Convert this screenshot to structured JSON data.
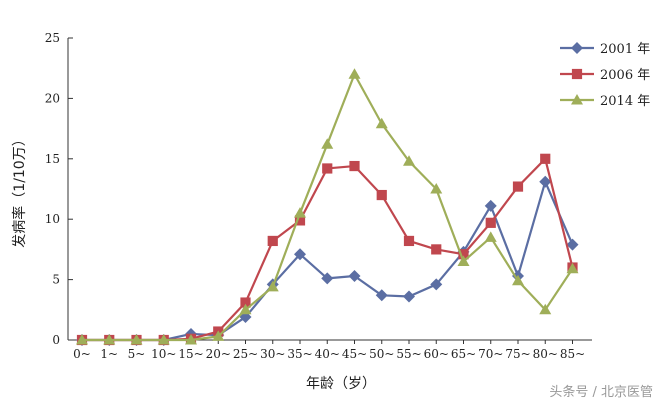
{
  "chart_data": {
    "type": "line",
    "xlabel": "年龄（岁）",
    "ylabel": "发病率（1/10万）",
    "categories": [
      "0~",
      "1~",
      "5~",
      "10~",
      "15~",
      "20~",
      "25~",
      "30~",
      "35~",
      "40~",
      "45~",
      "50~",
      "55~",
      "60~",
      "65~",
      "70~",
      "75~",
      "80~",
      "85~"
    ],
    "ylim": [
      0,
      25
    ],
    "yticks": [
      0,
      5,
      10,
      15,
      20,
      25
    ],
    "grid": false,
    "legend_position": "top-right",
    "series": [
      {
        "name": "2001 年",
        "color": "#5b6ea3",
        "marker": "diamond",
        "values": [
          0,
          0,
          0,
          0,
          0.5,
          0.4,
          1.9,
          4.6,
          7.1,
          5.1,
          5.3,
          3.7,
          3.6,
          4.6,
          7.3,
          11.1,
          5.3,
          13.1,
          7.9
        ]
      },
      {
        "name": "2006 年",
        "color": "#c0474e",
        "marker": "square",
        "values": [
          0,
          0,
          0,
          0,
          0.1,
          0.7,
          3.1,
          8.2,
          9.9,
          14.2,
          14.4,
          12.0,
          8.2,
          7.5,
          7.1,
          9.7,
          12.7,
          15.0,
          6.0
        ]
      },
      {
        "name": "2014 年",
        "color": "#9fae59",
        "marker": "triangle",
        "values": [
          0,
          0,
          0,
          0,
          0,
          0.3,
          2.5,
          4.4,
          10.5,
          16.2,
          22.0,
          17.9,
          14.8,
          12.5,
          6.5,
          8.5,
          4.9,
          2.5,
          5.9
        ]
      }
    ]
  },
  "watermark": "头条号 / 北京医管"
}
